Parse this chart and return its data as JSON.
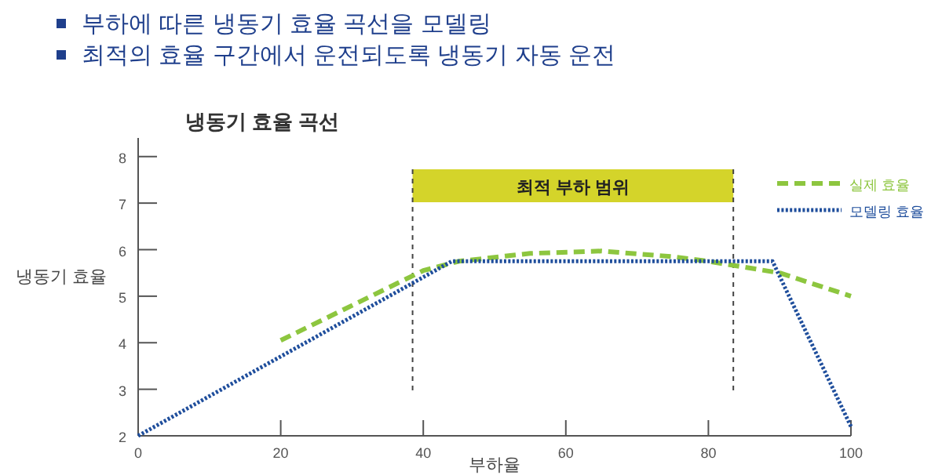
{
  "chart_data": {
    "type": "line",
    "title": "냉동기 효율 곡선",
    "xlabel": "부하율",
    "ylabel": "냉동기 효율",
    "annotations": [
      "부하에 따른 냉동기 효율 곡선을 모델링",
      "최적의 효율 구간에서 운전되도록 냉동기 자동 운전"
    ],
    "series": [
      {
        "name": "실제 효율",
        "color": "#8dc63f",
        "line_style": "dashed",
        "x": [
          20,
          40,
          45,
          55,
          65,
          75,
          80,
          90,
          100
        ],
        "values": [
          4.05,
          5.55,
          5.75,
          5.92,
          5.97,
          5.85,
          5.75,
          5.5,
          5.0
        ]
      },
      {
        "name": "모델링 효율",
        "color": "#1f4e9c",
        "line_style": "dotted",
        "x": [
          0,
          44,
          89,
          100
        ],
        "values": [
          2.0,
          5.75,
          5.75,
          2.2
        ]
      }
    ],
    "bands": [
      {
        "axis": "x",
        "from": 38.5,
        "to": 83.5,
        "label": "최적 부하 범위",
        "color": "#d4d42a"
      }
    ],
    "ref_lines": [
      {
        "axis": "x",
        "value": 38.5,
        "color": "#444444",
        "line_style": "dashed"
      },
      {
        "axis": "x",
        "value": 83.5,
        "color": "#444444",
        "line_style": "dashed"
      }
    ],
    "xlim": [
      0,
      100
    ],
    "xticks": [
      0,
      20,
      40,
      60,
      80,
      100
    ],
    "ylim": [
      2,
      8.4
    ],
    "yticks": [
      2,
      3,
      4,
      5,
      6,
      7,
      8
    ],
    "grid": false,
    "legend": "top right",
    "marker": "none"
  }
}
